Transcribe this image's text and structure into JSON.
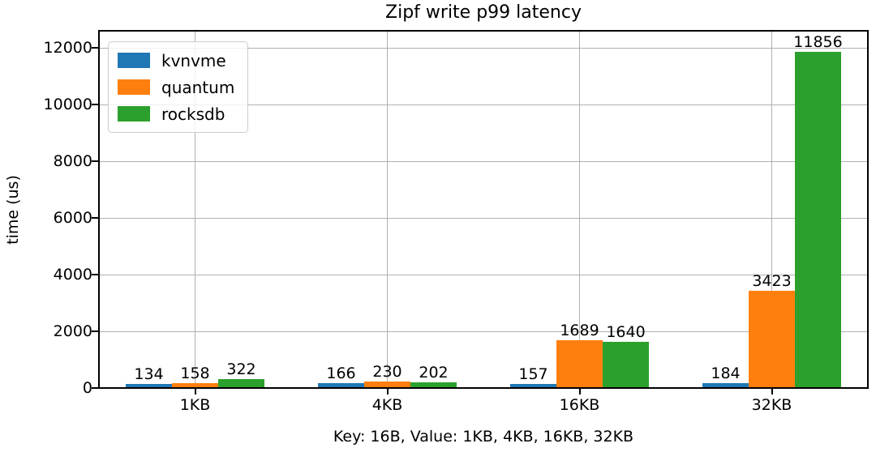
{
  "chart_data": {
    "type": "bar",
    "title": "Zipf write p99 latency",
    "xlabel": "Key: 16B, Value: 1KB, 4KB, 16KB, 32KB",
    "ylabel": "time (us)",
    "categories": [
      "1KB",
      "4KB",
      "16KB",
      "32KB"
    ],
    "series": [
      {
        "name": "kvnvme",
        "color": "#1f77b4",
        "values": [
          134,
          166,
          157,
          184
        ]
      },
      {
        "name": "quantum",
        "color": "#ff7f0e",
        "values": [
          158,
          230,
          1689,
          3423
        ]
      },
      {
        "name": "rocksdb",
        "color": "#2ca02c",
        "values": [
          322,
          202,
          1640,
          11856
        ]
      }
    ],
    "yticks": [
      0,
      2000,
      4000,
      6000,
      8000,
      10000,
      12000
    ],
    "ylim": [
      0,
      12600
    ],
    "grid": true,
    "grid_color": "#b0b0b0",
    "axis_color": "#000000",
    "background_color": "#ffffff",
    "legend_position": "upper left",
    "bar_value_labels_shown": true
  }
}
